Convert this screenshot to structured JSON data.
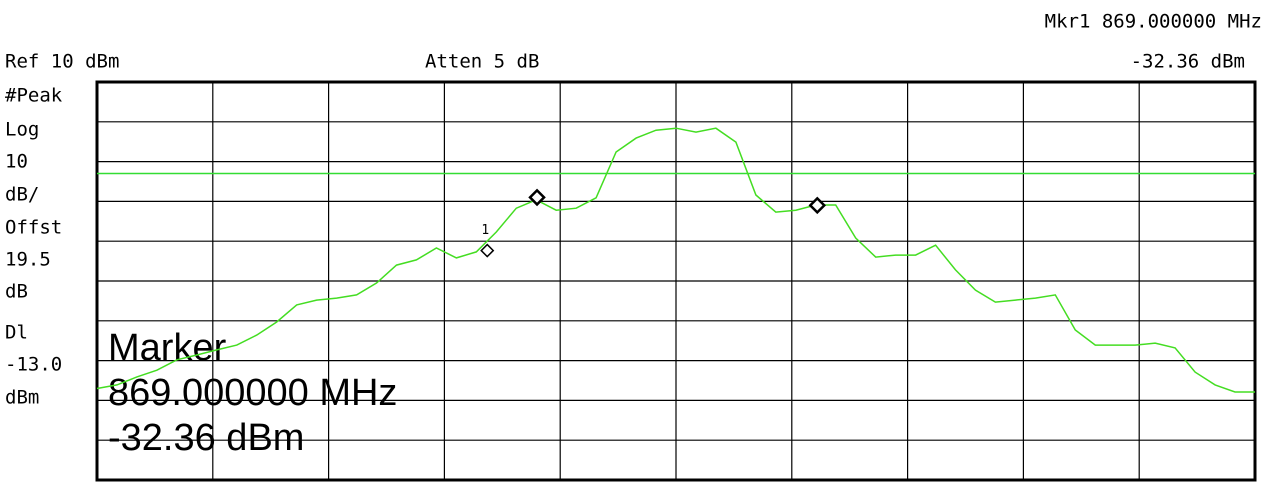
{
  "chart_data": {
    "type": "line",
    "header": {
      "marker_readout": "Mkr1  869.000000 MHz",
      "marker_level": "-32.36 dBm",
      "reference": "Ref 10 dBm",
      "attenuation": "Atten 5 dB"
    },
    "scale_labels": [
      "#Peak",
      "Log",
      "10",
      "dB/",
      "Offst",
      "19.5",
      "dB"
    ],
    "display_line": {
      "name": "Dl",
      "value": -13,
      "label": "-13.0",
      "unit": "dBm",
      "color": "#33dd33"
    },
    "ylim": [
      -90,
      10
    ],
    "yticks": [
      10,
      0,
      -10,
      -20,
      -30,
      -40,
      -50,
      -60,
      -70,
      -80,
      -90
    ],
    "xlim": [
      0,
      10
    ],
    "xticks": [
      0,
      1,
      2,
      3,
      4,
      5,
      6,
      7,
      8,
      9,
      10
    ],
    "grid": true,
    "series": [
      {
        "color": "#44dd22",
        "values": [
          -67.0,
          -66.1,
          -64.1,
          -62.4,
          -59.8,
          -58.6,
          -57.3,
          -56.1,
          -53.6,
          -50.3,
          -46.0,
          -44.8,
          -44.3,
          -43.5,
          -40.5,
          -36.0,
          -34.7,
          -31.7,
          -34.2,
          -32.7,
          -27.7,
          -21.7,
          -19.6,
          -22.2,
          -21.7,
          -19.1,
          -7.6,
          -4.1,
          -2.1,
          -1.6,
          -2.6,
          -1.6,
          -5.1,
          -18.4,
          -22.7,
          -22.2,
          -20.9,
          -20.9,
          -29.2,
          -34.0,
          -33.5,
          -33.5,
          -31.0,
          -37.2,
          -42.3,
          -45.3,
          -44.8,
          -44.3,
          -43.5,
          -52.3,
          -56.1,
          -56.1,
          -56.1,
          -55.6,
          -56.8,
          -62.9,
          -66.1,
          -67.9,
          -67.9
        ]
      }
    ],
    "markers": [
      {
        "name": "1",
        "x": 3.37,
        "value": -32.36,
        "value_label": "-32.36 dBm",
        "frequency": "869.000000 MHz"
      },
      {
        "x": 3.8,
        "value": -19.0
      },
      {
        "x": 6.22,
        "value": -21.0
      }
    ],
    "marker_box": {
      "title": "Marker"
    }
  }
}
